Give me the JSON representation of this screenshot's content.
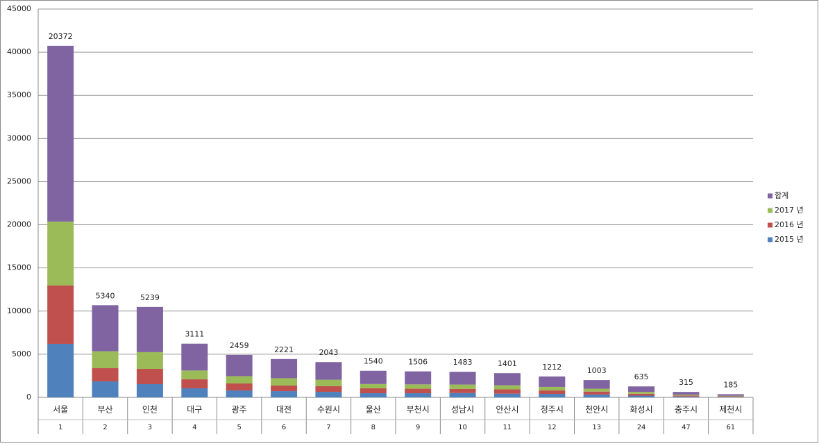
{
  "chart_data": {
    "type": "stacked_bar",
    "categories": [
      "서울",
      "부산",
      "인천",
      "대구",
      "광주",
      "대전",
      "수원시",
      "울산",
      "부천시",
      "성남시",
      "안산시",
      "청주시",
      "천안시",
      "화성시",
      "충주시",
      "제천시"
    ],
    "subcategories": [
      "1",
      "2",
      "3",
      "4",
      "5",
      "6",
      "7",
      "8",
      "9",
      "10",
      "11",
      "12",
      "13",
      "24",
      "47",
      "61"
    ],
    "series": [
      {
        "name": "2015 년",
        "color": "#4f81bd",
        "values": [
          6200,
          1850,
          1530,
          1050,
          800,
          720,
          640,
          480,
          480,
          500,
          430,
          400,
          330,
          200,
          100,
          60
        ]
      },
      {
        "name": "2016 년",
        "color": "#c0504d",
        "values": [
          6760,
          1530,
          1770,
          1040,
          810,
          650,
          650,
          570,
          520,
          480,
          500,
          400,
          340,
          220,
          110,
          60
        ]
      },
      {
        "name": "2017 년",
        "color": "#9bbb59",
        "values": [
          7412,
          1960,
          1939,
          1021,
          849,
          851,
          753,
          490,
          506,
          503,
          471,
          412,
          333,
          215,
          105,
          65
        ]
      },
      {
        "name": "합계",
        "color": "#8064a2",
        "values": [
          20372,
          5340,
          5239,
          3111,
          2459,
          2221,
          2043,
          1540,
          1506,
          1483,
          1401,
          1212,
          1003,
          635,
          315,
          185
        ]
      }
    ],
    "data_labels_series": 3,
    "ylim": [
      0,
      45000
    ],
    "yticks": [
      0,
      5000,
      10000,
      15000,
      20000,
      25000,
      30000,
      35000,
      40000,
      45000
    ],
    "grid": true,
    "legend": "right"
  }
}
